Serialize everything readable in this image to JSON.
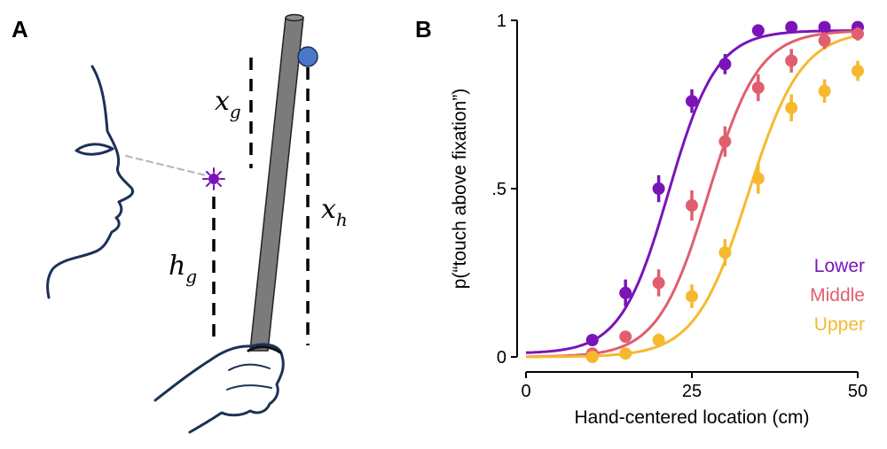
{
  "panels": {
    "a_label": "A",
    "b_label": "B"
  },
  "diagram": {
    "x_g": {
      "main": "x",
      "sub": "g"
    },
    "h_g": {
      "main": "h",
      "sub": "g"
    },
    "x_h": {
      "main": "x",
      "sub": "h"
    },
    "colors": {
      "outline": "#1b3257",
      "stick": "#7b7b7b",
      "ball": "#4a78c8",
      "fixation": "#7a14b8",
      "gaze_line": "#b4b4b4"
    },
    "icons": [
      "face-profile",
      "eye",
      "fixation-star",
      "stick",
      "ball",
      "hand"
    ]
  },
  "chart_data": {
    "type": "scatter",
    "xlabel": "Hand-centered location (cm)",
    "ylabel": "p(“touch above fixation”)",
    "xlim": [
      0,
      50
    ],
    "ylim": [
      0,
      1
    ],
    "xticks": [
      0,
      25,
      50
    ],
    "xtick_labels": [
      "0",
      "25",
      "50"
    ],
    "yticks": [
      0,
      0.5,
      1
    ],
    "ytick_labels": [
      "0",
      ".5",
      "1"
    ],
    "grid": false,
    "legend_placement": "bottom-right",
    "series": [
      {
        "name": "Lower",
        "color": "#7a14b8",
        "x": [
          10,
          15,
          20,
          25,
          30,
          35,
          40,
          45,
          50
        ],
        "y": [
          0.05,
          0.19,
          0.5,
          0.76,
          0.87,
          0.97,
          0.98,
          0.98,
          0.98
        ],
        "err": [
          0,
          0.04,
          0.04,
          0.035,
          0.03,
          0.01,
          0.01,
          0.01,
          0.01
        ],
        "fit": {
          "mu": 21.5,
          "s": 3.6,
          "lo": 0.01,
          "hi": 0.97
        }
      },
      {
        "name": "Middle",
        "color": "#e05f6e",
        "x": [
          10,
          15,
          20,
          25,
          30,
          35,
          40,
          45,
          50
        ],
        "y": [
          0.01,
          0.06,
          0.22,
          0.45,
          0.64,
          0.8,
          0.88,
          0.94,
          0.96
        ],
        "err": [
          0,
          0.015,
          0.04,
          0.045,
          0.045,
          0.04,
          0.035,
          0.025,
          0.02
        ],
        "fit": {
          "mu": 27.5,
          "s": 3.8,
          "lo": 0.0,
          "hi": 0.97
        }
      },
      {
        "name": "Upper",
        "color": "#f6b92e",
        "x": [
          10,
          15,
          20,
          25,
          30,
          35,
          40,
          45,
          50
        ],
        "y": [
          0.0,
          0.01,
          0.05,
          0.18,
          0.31,
          0.53,
          0.74,
          0.79,
          0.85
        ],
        "err": [
          0,
          0.01,
          0.02,
          0.035,
          0.04,
          0.045,
          0.04,
          0.035,
          0.03
        ],
        "fit": {
          "mu": 33.5,
          "s": 4.0,
          "lo": 0.0,
          "hi": 0.97
        }
      }
    ]
  }
}
